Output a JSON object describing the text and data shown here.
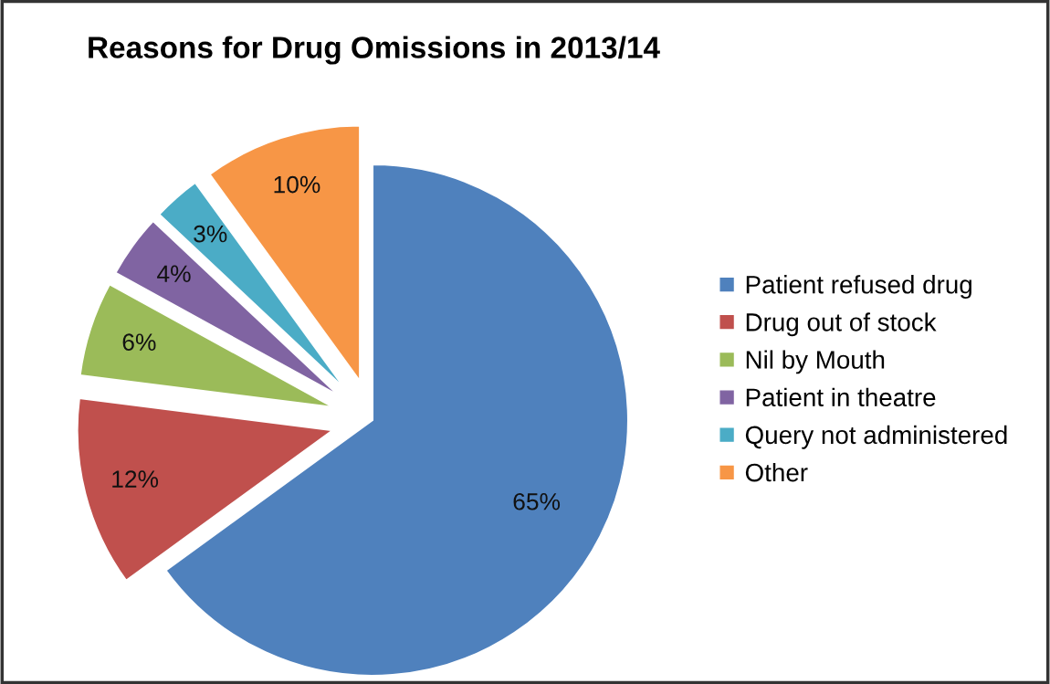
{
  "chart_data": {
    "type": "pie",
    "title": "Reasons for Drug Omissions in 2013/14",
    "categories": [
      "Patient refused drug",
      "Drug out of stock",
      "Nil by Mouth",
      "Patient in theatre",
      "Query not administered",
      "Other"
    ],
    "values": [
      65,
      12,
      6,
      4,
      3,
      10
    ],
    "colors": [
      "#4f81bd",
      "#c0504d",
      "#9bbb59",
      "#8064a2",
      "#4bacc6",
      "#f79646"
    ],
    "value_labels": [
      "65%",
      "12%",
      "6%",
      "4%",
      "3%",
      "10%"
    ],
    "legend": "right"
  }
}
